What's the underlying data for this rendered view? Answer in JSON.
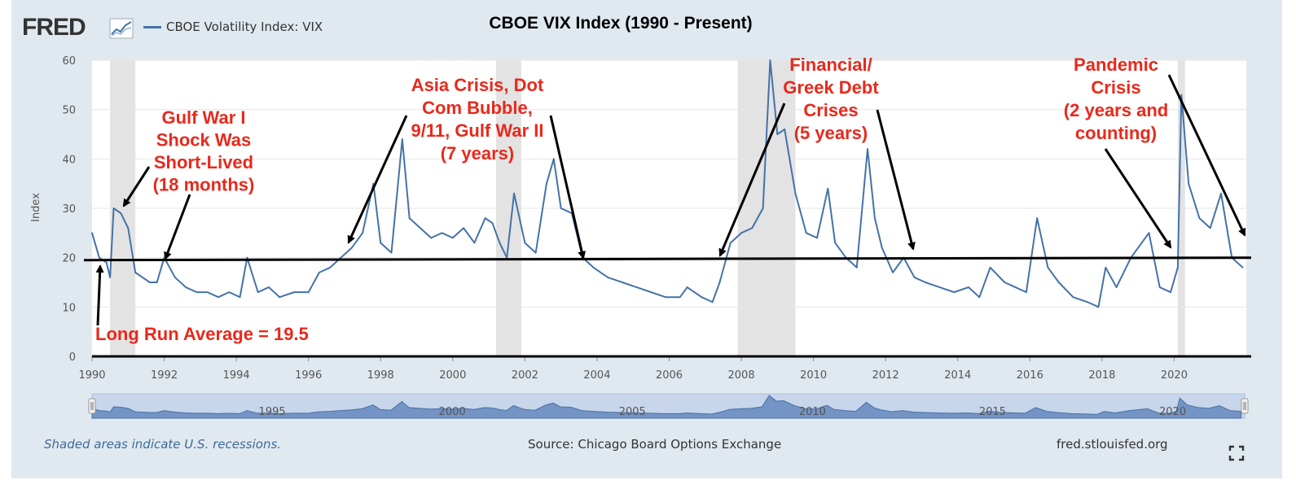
{
  "header": {
    "logo_text": "FRED",
    "legend_label": "CBOE Volatility Index: VIX",
    "title": "CBOE VIX Index (1990 - Present)"
  },
  "footer": {
    "recession_note": "Shaded areas indicate U.S. recessions.",
    "source": "Source: Chicago Board Options Exchange",
    "site": "fred.stlouisfed.org"
  },
  "colors": {
    "series": "#4572a7",
    "annotation": "#e8291c",
    "recession": "#e3e3e3",
    "background": "#e1e9f0"
  },
  "icons": [
    "fred-sparkline-icon",
    "fullscreen-icon",
    "navigator-handle-icon"
  ],
  "chart_data": {
    "type": "line",
    "title": "CBOE VIX Index (1990 - Present)",
    "ylabel": "Index",
    "xlabel": "",
    "xlim": [
      1990,
      2022
    ],
    "ylim": [
      0,
      60
    ],
    "x_ticks": [
      "1990",
      "1992",
      "1994",
      "1996",
      "1998",
      "2000",
      "2002",
      "2004",
      "2006",
      "2008",
      "2010",
      "2012",
      "2014",
      "2016",
      "2018",
      "2020"
    ],
    "y_ticks": [
      "0",
      "10",
      "20",
      "30",
      "40",
      "50",
      "60"
    ],
    "grid": true,
    "legend": "top-left",
    "long_run_average": 19.5,
    "recessions": [
      [
        1990.5,
        1991.2
      ],
      [
        2001.2,
        2001.9
      ],
      [
        2007.9,
        2009.5
      ],
      [
        2020.1,
        2020.3
      ]
    ],
    "navigator_labels": [
      "1995",
      "2000",
      "2005",
      "2010",
      "2015",
      "2020"
    ],
    "series": [
      {
        "name": "CBOE Volatility Index: VIX",
        "x": [
          1990.0,
          1990.2,
          1990.4,
          1990.5,
          1990.6,
          1990.8,
          1991.0,
          1991.2,
          1991.4,
          1991.6,
          1991.8,
          1992.0,
          1992.3,
          1992.6,
          1992.9,
          1993.2,
          1993.5,
          1993.8,
          1994.1,
          1994.3,
          1994.6,
          1994.9,
          1995.2,
          1995.6,
          1996.0,
          1996.3,
          1996.6,
          1996.9,
          1997.2,
          1997.5,
          1997.8,
          1998.0,
          1998.3,
          1998.6,
          1998.8,
          1999.1,
          1999.4,
          1999.7,
          2000.0,
          2000.3,
          2000.6,
          2000.9,
          2001.1,
          2001.3,
          2001.5,
          2001.7,
          2002.0,
          2002.3,
          2002.6,
          2002.8,
          2003.0,
          2003.3,
          2003.6,
          2003.9,
          2004.3,
          2004.7,
          2005.1,
          2005.5,
          2005.9,
          2006.3,
          2006.5,
          2006.9,
          2007.2,
          2007.4,
          2007.7,
          2008.0,
          2008.3,
          2008.6,
          2008.8,
          2009.0,
          2009.2,
          2009.5,
          2009.8,
          2010.1,
          2010.4,
          2010.6,
          2010.9,
          2011.2,
          2011.5,
          2011.7,
          2011.9,
          2012.2,
          2012.5,
          2012.8,
          2013.1,
          2013.5,
          2013.9,
          2014.3,
          2014.6,
          2014.9,
          2015.3,
          2015.6,
          2015.9,
          2016.2,
          2016.5,
          2016.8,
          2017.2,
          2017.6,
          2017.9,
          2018.1,
          2018.4,
          2018.8,
          2019.0,
          2019.3,
          2019.6,
          2019.9,
          2020.1,
          2020.2,
          2020.4,
          2020.7,
          2021.0,
          2021.3,
          2021.6,
          2021.9
        ],
        "values": [
          25,
          20,
          19,
          16,
          30,
          29,
          26,
          17,
          16,
          15,
          15,
          20,
          16,
          14,
          13,
          13,
          12,
          13,
          12,
          20,
          13,
          14,
          12,
          13,
          13,
          17,
          18,
          20,
          22,
          25,
          35,
          23,
          21,
          44,
          28,
          26,
          24,
          25,
          24,
          26,
          23,
          28,
          27,
          23,
          20,
          33,
          23,
          21,
          35,
          40,
          30,
          29,
          20,
          18,
          16,
          15,
          14,
          13,
          12,
          12,
          14,
          12,
          11,
          15,
          23,
          25,
          26,
          30,
          60,
          45,
          46,
          33,
          25,
          24,
          34,
          23,
          20,
          18,
          42,
          28,
          22,
          17,
          20,
          16,
          15,
          14,
          13,
          14,
          12,
          18,
          15,
          14,
          13,
          28,
          18,
          15,
          12,
          11,
          10,
          18,
          14,
          20,
          22,
          25,
          14,
          13,
          18,
          53,
          35,
          28,
          26,
          33,
          20,
          18
        ]
      }
    ],
    "annotations": [
      {
        "id": "gulf-war",
        "lines": [
          "Gulf War I",
          "Shock Was",
          "Short-Lived",
          "(18 months)"
        ]
      },
      {
        "id": "asia-crisis",
        "lines": [
          "Asia Crisis, Dot",
          "Com Bubble,",
          "9/11, Gulf War II",
          "(7 years)"
        ]
      },
      {
        "id": "financial-crisis",
        "lines": [
          "Financial/",
          "Greek Debt",
          "Crises",
          "(5 years)"
        ]
      },
      {
        "id": "pandemic",
        "lines": [
          "Pandemic",
          "Crisis",
          "(2 years and",
          "counting)"
        ]
      },
      {
        "id": "long-run-average",
        "lines": [
          "Long Run Average = 19.5"
        ]
      }
    ]
  }
}
